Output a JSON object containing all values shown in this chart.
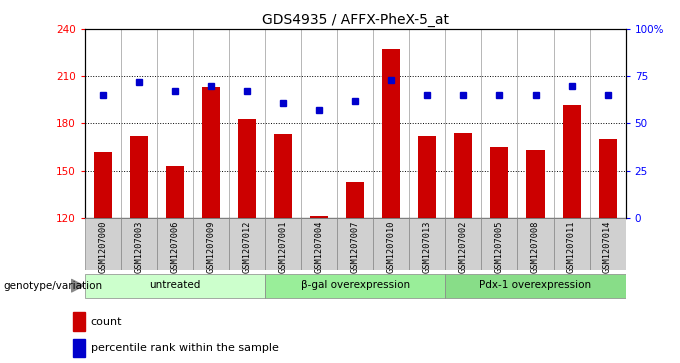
{
  "title": "GDS4935 / AFFX-PheX-5_at",
  "samples": [
    "GSM1207000",
    "GSM1207003",
    "GSM1207006",
    "GSM1207009",
    "GSM1207012",
    "GSM1207001",
    "GSM1207004",
    "GSM1207007",
    "GSM1207010",
    "GSM1207013",
    "GSM1207002",
    "GSM1207005",
    "GSM1207008",
    "GSM1207011",
    "GSM1207014"
  ],
  "bar_values": [
    162,
    172,
    153,
    203,
    183,
    173,
    121,
    143,
    227,
    172,
    174,
    165,
    163,
    192,
    170
  ],
  "dot_values_pct": [
    65,
    72,
    67,
    70,
    67,
    61,
    57,
    62,
    73,
    65,
    65,
    65,
    65,
    70,
    65
  ],
  "groups": [
    {
      "label": "untreated",
      "start": 0,
      "end": 5,
      "color": "#ccffcc"
    },
    {
      "label": "β-gal overexpression",
      "start": 5,
      "end": 10,
      "color": "#99ee99"
    },
    {
      "label": "Pdx-1 overexpression",
      "start": 10,
      "end": 15,
      "color": "#88dd88"
    }
  ],
  "ylim_left": [
    120,
    240
  ],
  "ylim_right": [
    0,
    100
  ],
  "yticks_left": [
    120,
    150,
    180,
    210,
    240
  ],
  "yticks_right": [
    0,
    25,
    50,
    75,
    100
  ],
  "bar_color": "#cc0000",
  "dot_color": "#0000cc",
  "bar_width": 0.5,
  "genotype_label": "genotype/variation"
}
